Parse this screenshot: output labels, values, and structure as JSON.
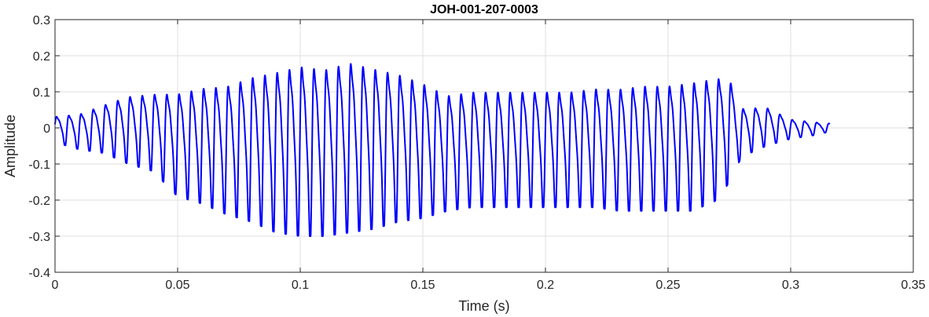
{
  "chart_data": {
    "type": "line",
    "title": "JOH-001-207-0003",
    "xlabel": "Time (s)",
    "ylabel": "Amplitude",
    "xlim": [
      0,
      0.35
    ],
    "ylim": [
      -0.4,
      0.3
    ],
    "grid": true,
    "x_ticks": [
      0,
      0.05,
      0.1,
      0.15,
      0.2,
      0.25,
      0.3,
      0.35
    ],
    "x_tick_labels": [
      "0",
      "0.05",
      "0.1",
      "0.15",
      "0.2",
      "0.25",
      "0.3",
      "0.35"
    ],
    "y_ticks": [
      -0.4,
      -0.3,
      -0.2,
      -0.1,
      0,
      0.1,
      0.2,
      0.3
    ],
    "y_tick_labels": [
      "-0.4",
      "-0.3",
      "-0.2",
      "-0.1",
      "0",
      "0.1",
      "0.2",
      "0.3"
    ],
    "line_color": "#0000ff",
    "series": [
      {
        "x_range": [
          0,
          0.316
        ],
        "envelope": {
          "t": [
            0,
            0.01,
            0.02,
            0.03,
            0.04,
            0.05,
            0.06,
            0.07,
            0.08,
            0.09,
            0.1,
            0.11,
            0.12,
            0.13,
            0.14,
            0.15,
            0.16,
            0.17,
            0.18,
            0.19,
            0.2,
            0.21,
            0.22,
            0.23,
            0.24,
            0.25,
            0.26,
            0.27,
            0.275,
            0.28,
            0.29,
            0.3,
            0.31,
            0.316
          ],
          "max": [
            0.04,
            0.05,
            0.08,
            0.11,
            0.12,
            0.13,
            0.15,
            0.16,
            0.19,
            0.21,
            0.23,
            0.22,
            0.24,
            0.22,
            0.2,
            0.17,
            0.13,
            0.14,
            0.14,
            0.14,
            0.14,
            0.14,
            0.15,
            0.15,
            0.16,
            0.16,
            0.17,
            0.18,
            0.17,
            0.07,
            0.07,
            0.03,
            0.02,
            0.015
          ],
          "min": [
            -0.04,
            -0.06,
            -0.07,
            -0.1,
            -0.12,
            -0.19,
            -0.21,
            -0.24,
            -0.26,
            -0.29,
            -0.3,
            -0.3,
            -0.29,
            -0.28,
            -0.26,
            -0.25,
            -0.23,
            -0.22,
            -0.22,
            -0.22,
            -0.22,
            -0.22,
            -0.22,
            -0.23,
            -0.23,
            -0.23,
            -0.23,
            -0.2,
            -0.15,
            -0.08,
            -0.05,
            -0.03,
            -0.02,
            -0.01
          ]
        },
        "cycle_period_s": 0.005
      }
    ]
  }
}
